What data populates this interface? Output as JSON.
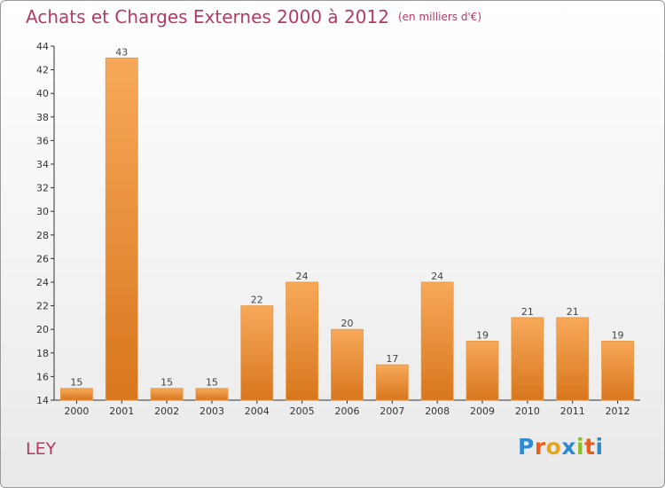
{
  "header": {
    "title": "Achats et Charges Externes 2000 à 2012",
    "subtitle": "(en milliers d'€)"
  },
  "footer": {
    "commune": "LEY",
    "brand": "Proxiti"
  },
  "colors": {
    "title": "#b53a62",
    "bar_top": "#f7a95a",
    "bar_bottom": "#d8761d",
    "axis": "#333333",
    "brand_letters": [
      "#2e8bd0",
      "#e8601c",
      "#e8a41c",
      "#2e8bd0",
      "#8cbf26",
      "#e8601c",
      "#2e8bd0"
    ]
  },
  "chart_data": {
    "type": "bar",
    "title": "Achats et Charges Externes 2000 à 2012",
    "xlabel": "",
    "ylabel": "",
    "categories": [
      "2000",
      "2001",
      "2002",
      "2003",
      "2004",
      "2005",
      "2006",
      "2007",
      "2008",
      "2009",
      "2010",
      "2011",
      "2012"
    ],
    "values": [
      15,
      43,
      15,
      15,
      22,
      24,
      20,
      17,
      24,
      19,
      21,
      21,
      19
    ],
    "ylim": [
      14,
      44
    ],
    "yticks": [
      14,
      16,
      18,
      20,
      22,
      24,
      26,
      28,
      30,
      32,
      34,
      36,
      38,
      40,
      42,
      44
    ],
    "grid": false,
    "legend": "none"
  }
}
